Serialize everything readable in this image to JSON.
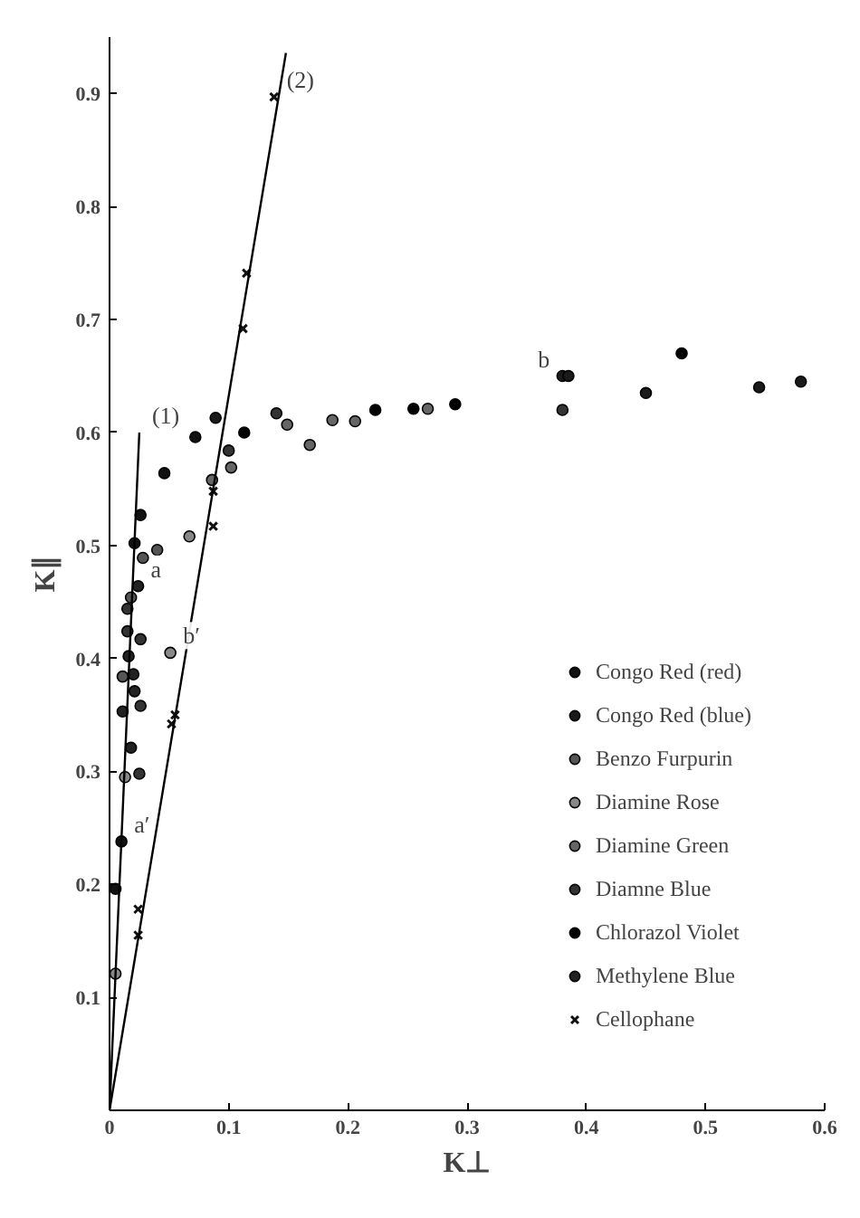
{
  "chart_data": {
    "type": "scatter",
    "xlabel": "K⊥",
    "ylabel": "K∥",
    "xlim": [
      0,
      0.6
    ],
    "ylim": [
      0,
      0.95
    ],
    "xticks": [
      0,
      0.1,
      0.2,
      0.3,
      0.4,
      0.5,
      0.6
    ],
    "yticks": [
      0.1,
      0.2,
      0.3,
      0.4,
      0.5,
      0.6,
      0.7,
      0.8,
      0.9
    ],
    "grid": false,
    "legend": "bottom right",
    "marker": "circle",
    "series": [
      {
        "name": "Congo Red (red)",
        "color": "#111111",
        "x": [
          0.021,
          0.026,
          0.01,
          0.005,
          0.046,
          0.072
        ],
        "values": [
          0.502,
          0.527,
          0.238,
          0.196,
          0.564,
          0.596
        ]
      },
      {
        "name": "Congo Red (blue)",
        "color": "#1a1a1a",
        "x": [
          0.089,
          0.38,
          0.385,
          0.45,
          0.545,
          0.58
        ],
        "values": [
          0.613,
          0.65,
          0.65,
          0.635,
          0.64,
          0.645
        ]
      },
      {
        "name": "Benzo Furpurin",
        "color": "#555555",
        "x": [
          0.028,
          0.04,
          0.018,
          0.011
        ],
        "values": [
          0.489,
          0.496,
          0.454,
          0.384
        ]
      },
      {
        "name": "Diamine Rose",
        "color": "#888888",
        "x": [
          0.067,
          0.051,
          0.005,
          0.013
        ],
        "values": [
          0.508,
          0.405,
          0.121,
          0.295
        ]
      },
      {
        "name": "Diamine Green",
        "color": "#666666",
        "x": [
          0.149,
          0.168,
          0.187,
          0.206,
          0.267,
          0.102,
          0.086
        ],
        "values": [
          0.607,
          0.589,
          0.611,
          0.61,
          0.621,
          0.569,
          0.558
        ]
      },
      {
        "name": "Diamne Blue",
        "color": "#333333",
        "x": [
          0.015,
          0.015,
          0.026,
          0.025,
          0.026,
          0.1,
          0.14,
          0.38
        ],
        "values": [
          0.444,
          0.424,
          0.417,
          0.298,
          0.358,
          0.584,
          0.617,
          0.62
        ]
      },
      {
        "name": "Chlorazol Violet",
        "color": "#000000",
        "x": [
          0.113,
          0.223,
          0.255,
          0.29,
          0.48
        ],
        "values": [
          0.6,
          0.62,
          0.621,
          0.625,
          0.67
        ]
      },
      {
        "name": "Methylene Blue",
        "color": "#222222",
        "x": [
          0.024,
          0.016,
          0.02,
          0.021,
          0.011,
          0.018
        ],
        "values": [
          0.464,
          0.402,
          0.386,
          0.371,
          0.353,
          0.321
        ]
      },
      {
        "name": "Cellophane",
        "color": "#111111",
        "marker": "cross",
        "x": [
          0.138,
          0.115,
          0.112,
          0.087,
          0.087,
          0.055,
          0.052,
          0.024,
          0.024
        ],
        "values": [
          0.897,
          0.741,
          0.692,
          0.517,
          0.548,
          0.35,
          0.342,
          0.178,
          0.155
        ]
      },
      {
        "type": "line",
        "color": "#000000",
        "marker": "none",
        "x": [
          0,
          0.025
        ],
        "values": [
          0,
          0.6
        ]
      },
      {
        "type": "line",
        "color": "#000000",
        "marker": "none",
        "x": [
          0,
          0.148
        ],
        "values": [
          0,
          0.936
        ]
      }
    ],
    "annotations": [
      {
        "text": "(1)",
        "x": 0.025,
        "y": 0.6
      },
      {
        "text": "(2)",
        "x": 0.138,
        "y": 0.897
      },
      {
        "text": "a",
        "x": 0.024,
        "y": 0.464
      },
      {
        "text": "a′",
        "x": 0.01,
        "y": 0.238
      },
      {
        "text": "b′",
        "x": 0.051,
        "y": 0.405
      },
      {
        "text": "b",
        "x": 0.38,
        "y": 0.65
      }
    ]
  }
}
